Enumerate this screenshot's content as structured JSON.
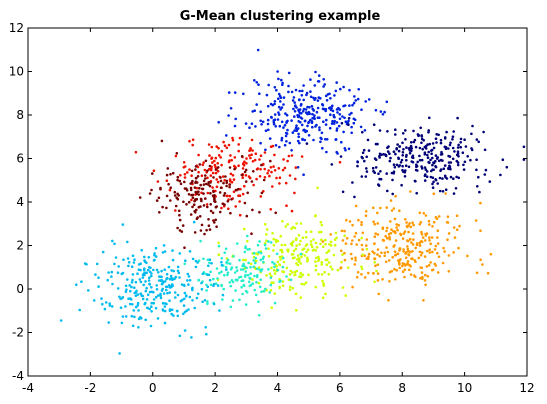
{
  "chart_data": {
    "type": "scatter",
    "title": "G-Mean clustering example",
    "xlabel": "",
    "ylabel": "",
    "xlim": [
      -4,
      12
    ],
    "ylim": [
      -4,
      12
    ],
    "xticks": [
      -4,
      -2,
      0,
      2,
      4,
      6,
      8,
      10,
      12
    ],
    "yticks": [
      -4,
      -2,
      0,
      2,
      4,
      6,
      8,
      10,
      12
    ],
    "xtick_labels": [
      "-4",
      "-2",
      "0",
      "2",
      "4",
      "6",
      "8",
      "10",
      "12"
    ],
    "ytick_labels": [
      "-4",
      "-2",
      "0",
      "2",
      "4",
      "6",
      "8",
      "10",
      "12"
    ],
    "grid": false,
    "legend": "none",
    "clusters": [
      {
        "color": "#0022dd",
        "center": [
          5.0,
          8.0
        ],
        "spread": [
          1.05,
          0.85
        ],
        "count": 300
      },
      {
        "color": "#000077",
        "center": [
          8.6,
          6.0
        ],
        "spread": [
          1.1,
          0.75
        ],
        "count": 290
      },
      {
        "color": "#ee1100",
        "center": [
          2.6,
          5.4
        ],
        "spread": [
          1.0,
          0.75
        ],
        "count": 190
      },
      {
        "color": "#770000",
        "center": [
          1.5,
          4.3
        ],
        "spread": [
          0.9,
          0.8
        ],
        "count": 180
      },
      {
        "color": "#ff9900",
        "center": [
          8.0,
          2.0
        ],
        "spread": [
          1.0,
          0.95
        ],
        "count": 290
      },
      {
        "color": "#ccff00",
        "center": [
          4.5,
          1.4
        ],
        "spread": [
          0.9,
          0.85
        ],
        "count": 230
      },
      {
        "color": "#22eecc",
        "center": [
          3.0,
          0.8
        ],
        "spread": [
          0.7,
          0.8
        ],
        "count": 150
      },
      {
        "color": "#00bbee",
        "center": [
          0.0,
          0.1
        ],
        "spread": [
          0.95,
          0.9
        ],
        "count": 300
      }
    ]
  }
}
